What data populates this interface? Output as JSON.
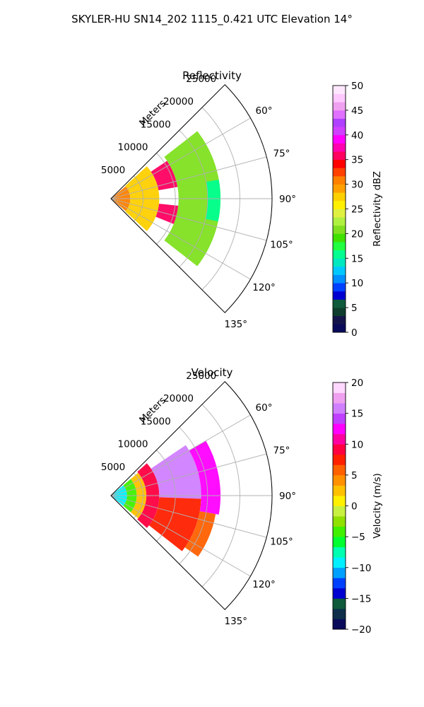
{
  "suptitle": "SKYLER-HU  SN14_202  1115_0.421 UTC Elevation 14°",
  "chart_data": [
    {
      "type": "heatmap",
      "projection": "polar-sector",
      "title": "Reflectivity",
      "radial_axis_label": "Meters",
      "radial_ticks": [
        5000,
        10000,
        15000,
        20000,
        25000
      ],
      "radial_tick_labels": [
        "5000",
        "10000",
        "15000",
        "20000",
        "25000"
      ],
      "angular_ticks": [
        60,
        75,
        90,
        105,
        120,
        135
      ],
      "angular_tick_labels": [
        "60°",
        "75°",
        "90°",
        "105°",
        "120°",
        "135°"
      ],
      "theta_range_deg": [
        45,
        135
      ],
      "r_range_m": [
        0,
        25000
      ],
      "grid": true,
      "colorbar": {
        "label": "Reflectivity dBZ",
        "range": [
          0,
          50
        ],
        "ticks": [
          0,
          5,
          10,
          15,
          20,
          25,
          30,
          35,
          40,
          45,
          50
        ],
        "tick_labels": [
          "0",
          "5",
          "10",
          "15",
          "20",
          "25",
          "30",
          "35",
          "40",
          "45",
          "50"
        ]
      },
      "observed_regions": [
        {
          "r_range_m": [
            0,
            3000
          ],
          "theta_deg": [
            50,
            130
          ],
          "value": 30
        },
        {
          "r_range_m": [
            3000,
            7500
          ],
          "theta_deg": [
            48,
            132
          ],
          "value": 27
        },
        {
          "r_range_m": [
            7500,
            10500
          ],
          "theta_deg": [
            56,
            80
          ],
          "value": 36
        },
        {
          "r_range_m": [
            7500,
            10500
          ],
          "theta_deg": [
            96,
            112
          ],
          "value": 36
        },
        {
          "r_range_m": [
            10500,
            17000
          ],
          "theta_deg": [
            52,
            128
          ],
          "value": 20
        },
        {
          "r_range_m": [
            15000,
            17000
          ],
          "theta_deg": [
            80,
            102
          ],
          "value": 15
        }
      ]
    },
    {
      "type": "heatmap",
      "projection": "polar-sector",
      "title": "Velocity",
      "radial_axis_label": "Meters",
      "radial_ticks": [
        5000,
        10000,
        15000,
        20000,
        25000
      ],
      "radial_tick_labels": [
        "5000",
        "10000",
        "15000",
        "20000",
        "25000"
      ],
      "angular_ticks": [
        60,
        75,
        90,
        105,
        120,
        135
      ],
      "angular_tick_labels": [
        "60°",
        "75°",
        "90°",
        "105°",
        "120°",
        "135°"
      ],
      "theta_range_deg": [
        45,
        135
      ],
      "r_range_m": [
        0,
        25000
      ],
      "grid": true,
      "colorbar": {
        "label": "Velocity (m/s)",
        "range": [
          -20,
          20
        ],
        "ticks": [
          -20,
          -15,
          -10,
          -5,
          0,
          5,
          10,
          15,
          20
        ],
        "tick_labels": [
          "−20",
          "−15",
          "−10",
          "−5",
          "0",
          "5",
          "10",
          "15",
          "20"
        ]
      },
      "observed_regions": [
        {
          "r_range_m": [
            0,
            2500
          ],
          "theta_deg": [
            50,
            130
          ],
          "value": -10
        },
        {
          "r_range_m": [
            2500,
            4000
          ],
          "theta_deg": [
            50,
            130
          ],
          "value": -4
        },
        {
          "r_range_m": [
            4000,
            5500
          ],
          "theta_deg": [
            50,
            130
          ],
          "value": 2
        },
        {
          "r_range_m": [
            5500,
            7500
          ],
          "theta_deg": [
            48,
            132
          ],
          "value": 9
        },
        {
          "r_range_m": [
            7500,
            14000
          ],
          "theta_deg": [
            56,
            92
          ],
          "value": 15
        },
        {
          "r_range_m": [
            7500,
            14000
          ],
          "theta_deg": [
            92,
            128
          ],
          "value": 8
        },
        {
          "r_range_m": [
            14000,
            17000
          ],
          "theta_deg": [
            60,
            100
          ],
          "value": 12
        },
        {
          "r_range_m": [
            14000,
            16500
          ],
          "theta_deg": [
            100,
            125
          ],
          "value": 6
        }
      ]
    }
  ]
}
